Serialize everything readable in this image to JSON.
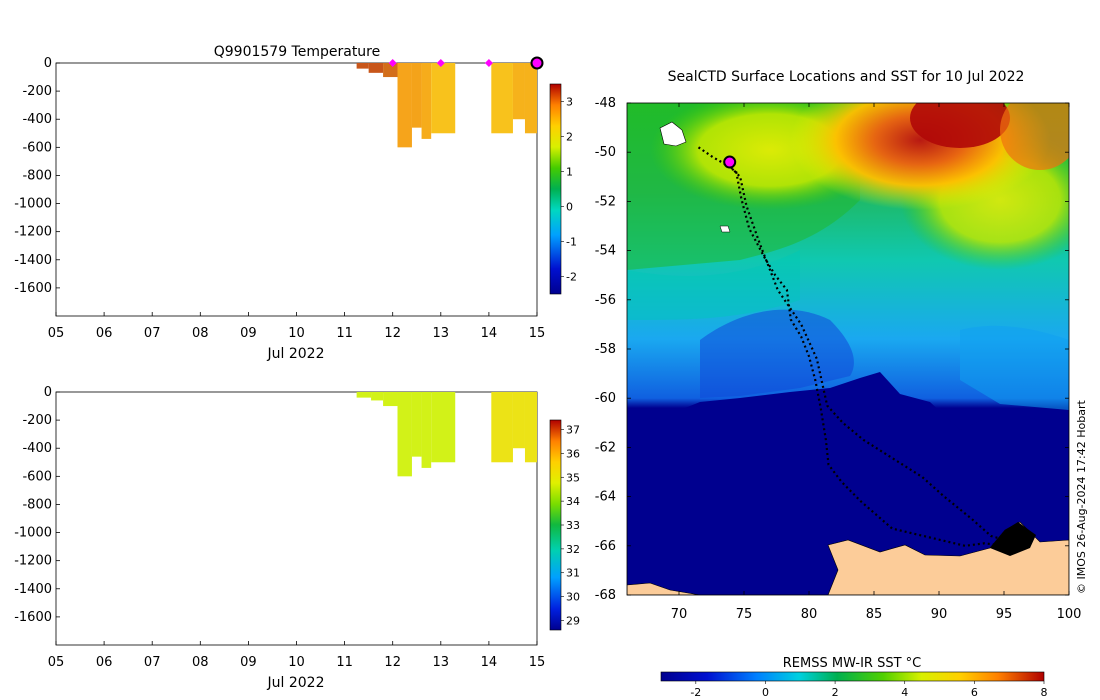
{
  "colors": {
    "temp_fill": "#f5a31a",
    "temp_fill_light": "#f8c21c",
    "temp_fill_dark": "#c8561a",
    "sal_fill": "#d2f218",
    "sal_fill_alt": "#ece316",
    "marker": "#ff00ff",
    "land": "#fccc99",
    "deep": "#00008f"
  },
  "chart_data": [
    {
      "type": "heatmap",
      "title": "Q9901579  Temperature",
      "xlabel": "Jul 2022",
      "ylabel": "",
      "x_ticks": [
        "05",
        "06",
        "07",
        "08",
        "09",
        "10",
        "11",
        "12",
        "13",
        "14",
        "15"
      ],
      "y_ticks": [
        "0",
        "-200",
        "-400",
        "-600",
        "-800",
        "-1000",
        "-1200",
        "-1400",
        "-1600"
      ],
      "xlim": [
        5,
        15
      ],
      "ylim": [
        -1800,
        0
      ],
      "colorbar": {
        "ticks": [
          "3",
          "2",
          "1",
          "0",
          "-1",
          "-2"
        ],
        "range": [
          -2.5,
          3.5
        ]
      },
      "profiles": [
        {
          "x0": 11.25,
          "x1": 11.5,
          "depth": -40,
          "color": "#c8561a"
        },
        {
          "x0": 11.5,
          "x1": 11.8,
          "depth": -70,
          "color": "#c8561a"
        },
        {
          "x0": 11.8,
          "x1": 12.1,
          "depth": -100,
          "color": "#d36e1a"
        },
        {
          "x0": 12.1,
          "x1": 12.4,
          "depth": -600,
          "color": "#f6a41b"
        },
        {
          "x0": 12.4,
          "x1": 12.6,
          "depth": -460,
          "color": "#f4a31a"
        },
        {
          "x0": 12.6,
          "x1": 12.8,
          "depth": -540,
          "color": "#f6ac1b"
        },
        {
          "x0": 12.8,
          "x1": 13.3,
          "depth": -500,
          "color": "#f8c21c"
        },
        {
          "x0": 14.05,
          "x1": 14.5,
          "depth": -500,
          "color": "#f8c21c"
        },
        {
          "x0": 14.5,
          "x1": 14.75,
          "depth": -400,
          "color": "#f6b21b"
        },
        {
          "x0": 14.75,
          "x1": 15.0,
          "depth": -500,
          "color": "#f6b21b"
        }
      ],
      "markers": [
        12.0,
        13.0,
        14.0
      ],
      "current": 15.0
    },
    {
      "type": "heatmap",
      "title": "",
      "xlabel": "Jul 2022",
      "ylabel": "",
      "x_ticks": [
        "05",
        "06",
        "07",
        "08",
        "09",
        "10",
        "11",
        "12",
        "13",
        "14",
        "15"
      ],
      "y_ticks": [
        "0",
        "-200",
        "-400",
        "-600",
        "-800",
        "-1000",
        "-1200",
        "-1400",
        "-1600"
      ],
      "xlim": [
        5,
        15
      ],
      "ylim": [
        -1800,
        0
      ],
      "colorbar": {
        "ticks": [
          "37",
          "36",
          "35",
          "34",
          "33",
          "32",
          "31",
          "30",
          "29"
        ],
        "range": [
          28.6,
          37.4
        ]
      },
      "profiles": [
        {
          "x0": 11.25,
          "x1": 11.55,
          "depth": -40,
          "color": "#d2f218"
        },
        {
          "x0": 11.55,
          "x1": 11.8,
          "depth": -60,
          "color": "#d2f218"
        },
        {
          "x0": 11.8,
          "x1": 12.1,
          "depth": -100,
          "color": "#d2f218"
        },
        {
          "x0": 12.1,
          "x1": 12.4,
          "depth": -600,
          "color": "#d2f218"
        },
        {
          "x0": 12.4,
          "x1": 12.6,
          "depth": -460,
          "color": "#d2f218"
        },
        {
          "x0": 12.6,
          "x1": 12.8,
          "depth": -540,
          "color": "#d2f218"
        },
        {
          "x0": 12.8,
          "x1": 13.3,
          "depth": -500,
          "color": "#d2f218"
        },
        {
          "x0": 14.05,
          "x1": 14.5,
          "depth": -500,
          "color": "#ece316"
        },
        {
          "x0": 14.5,
          "x1": 14.75,
          "depth": -400,
          "color": "#ece316"
        },
        {
          "x0": 14.75,
          "x1": 15.0,
          "depth": -500,
          "color": "#ece316"
        }
      ]
    },
    {
      "type": "heatmap",
      "title": "SealCTD Surface Locations and SST for 10 Jul 2022",
      "xlabel": "",
      "ylabel": "",
      "x_ticks": [
        "70",
        "75",
        "80",
        "85",
        "90",
        "95",
        "100"
      ],
      "y_ticks": [
        "-48",
        "-50",
        "-52",
        "-54",
        "-56",
        "-58",
        "-60",
        "-62",
        "-64",
        "-66",
        "-68"
      ],
      "xlim": [
        66,
        100
      ],
      "ylim": [
        -68,
        -48
      ],
      "colorbar": {
        "label": "REMSS MW-IR SST °C",
        "ticks": [
          "-2",
          "0",
          "2",
          "4",
          "6",
          "8"
        ],
        "range": [
          -3,
          8
        ]
      },
      "track": [
        [
          71.5,
          -49.8
        ],
        [
          72.6,
          -50.2
        ],
        [
          73.6,
          -50.5
        ],
        [
          74.4,
          -50.8
        ],
        [
          74.8,
          -51.9
        ],
        [
          75.4,
          -53.1
        ],
        [
          76.6,
          -54.3
        ],
        [
          77.4,
          -55.0
        ],
        [
          78.3,
          -55.6
        ],
        [
          78.6,
          -56.8
        ],
        [
          79.4,
          -57.5
        ],
        [
          80.0,
          -58.3
        ],
        [
          80.5,
          -59.3
        ],
        [
          80.9,
          -60.4
        ],
        [
          81.3,
          -61.7
        ],
        [
          81.5,
          -62.7
        ],
        [
          82.5,
          -63.4
        ],
        [
          84.0,
          -64.2
        ],
        [
          86.4,
          -65.3
        ],
        [
          89.6,
          -65.7
        ],
        [
          92.0,
          -66.0
        ],
        [
          93.5,
          -65.9
        ],
        [
          95.0,
          -66.0
        ],
        [
          96.0,
          -65.9
        ],
        [
          94.0,
          -65.6
        ],
        [
          92.5,
          -64.9
        ],
        [
          90.4,
          -64.0
        ],
        [
          88.7,
          -63.2
        ],
        [
          86.6,
          -62.5
        ],
        [
          84.2,
          -61.7
        ],
        [
          82.6,
          -61.0
        ],
        [
          81.4,
          -60.3
        ],
        [
          80.6,
          -58.4
        ],
        [
          79.4,
          -57.0
        ],
        [
          77.6,
          -55.6
        ],
        [
          76.2,
          -53.7
        ],
        [
          75.2,
          -52.2
        ],
        [
          74.7,
          -51.0
        ],
        [
          73.6,
          -50.4
        ]
      ],
      "current_location": [
        73.9,
        -50.4
      ],
      "note": "© IMOS 26-Aug-2024 17:42 Hobart"
    }
  ]
}
